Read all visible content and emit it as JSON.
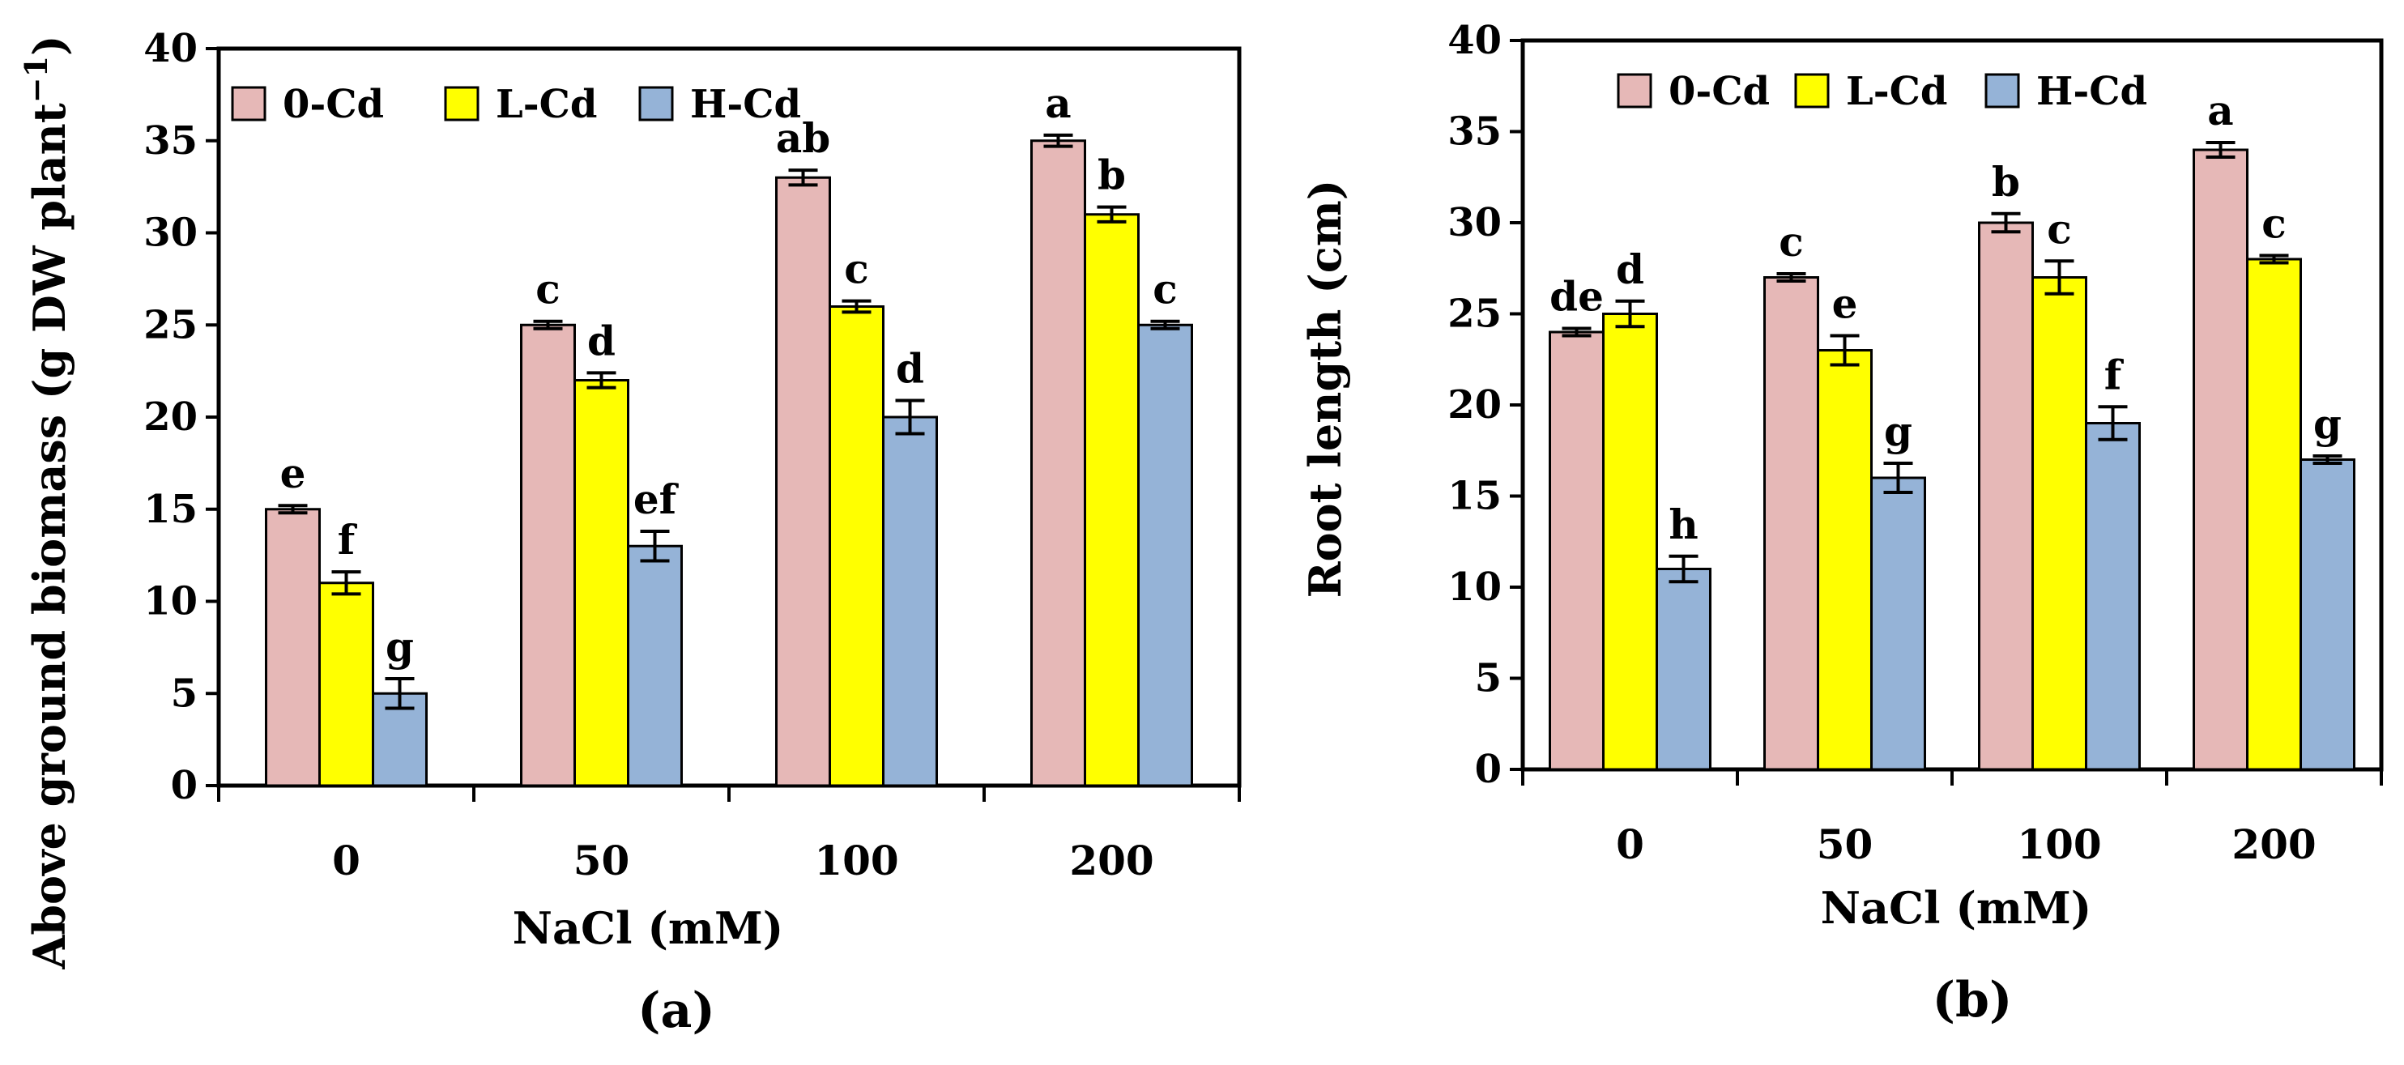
{
  "colors": {
    "c0": "#E6B8B7",
    "cL": "#FFFF00",
    "cH": "#95B3D7",
    "stroke": "#000000"
  },
  "chart_data": [
    {
      "type": "bar",
      "panel_label": "(a)",
      "title": "",
      "xlabel": "NaCl (mM)",
      "ylabel": "Above ground biomass (g DW plant",
      "ylabel_sup": "−1",
      "ylabel_close": ")",
      "ylim": [
        0,
        40
      ],
      "yticks": [
        "0",
        "5",
        "10",
        "15",
        "20",
        "25",
        "30",
        "35",
        "40"
      ],
      "categories": [
        "0",
        "50",
        "100",
        "200"
      ],
      "legend_position": "top-left",
      "series": [
        {
          "name": "0-Cd",
          "values": [
            15,
            25,
            33,
            35
          ],
          "errors": [
            0.2,
            0.2,
            0.4,
            0.3
          ],
          "letters": [
            "e",
            "c",
            "ab",
            "a"
          ]
        },
        {
          "name": "L-Cd",
          "values": [
            11,
            22,
            26,
            31
          ],
          "errors": [
            0.6,
            0.4,
            0.3,
            0.4
          ],
          "letters": [
            "f",
            "d",
            "c",
            "b"
          ]
        },
        {
          "name": "H-Cd",
          "values": [
            5,
            13,
            20,
            25
          ],
          "errors": [
            0.8,
            0.8,
            0.9,
            0.2
          ],
          "letters": [
            "g",
            "ef",
            "d",
            "c"
          ]
        }
      ]
    },
    {
      "type": "bar",
      "panel_label": "(b)",
      "title": "",
      "xlabel": "NaCl (mM)",
      "ylabel": "Root length (cm)",
      "ylabel_sup": "",
      "ylabel_close": "",
      "ylim": [
        0,
        40
      ],
      "yticks": [
        "0",
        "5",
        "10",
        "15",
        "20",
        "25",
        "30",
        "35",
        "40"
      ],
      "categories": [
        "0",
        "50",
        "100",
        "200"
      ],
      "legend_position": "top-left",
      "series": [
        {
          "name": "0-Cd",
          "values": [
            24,
            27,
            30,
            34
          ],
          "errors": [
            0.2,
            0.2,
            0.5,
            0.4
          ],
          "letters": [
            "de",
            "c",
            "b",
            "a"
          ]
        },
        {
          "name": "L-Cd",
          "values": [
            25,
            23,
            27,
            28
          ],
          "errors": [
            0.7,
            0.8,
            0.9,
            0.2
          ],
          "letters": [
            "d",
            "e",
            "c",
            "c"
          ]
        },
        {
          "name": "H-Cd",
          "values": [
            11,
            16,
            19,
            17
          ],
          "errors": [
            0.7,
            0.8,
            0.9,
            0.2
          ],
          "letters": [
            "h",
            "g",
            "f",
            "g"
          ]
        }
      ]
    }
  ]
}
